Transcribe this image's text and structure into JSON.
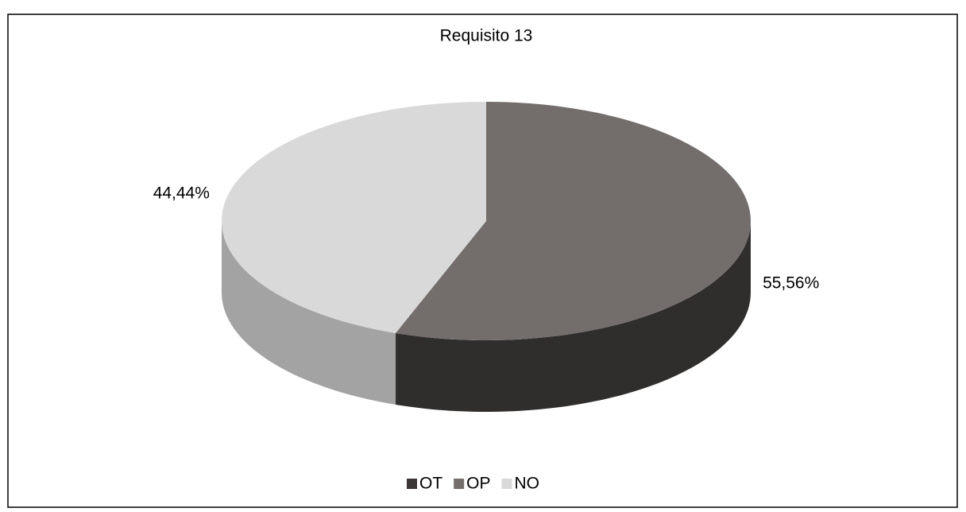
{
  "chart_data": {
    "type": "pie3d",
    "title": "Requisito 13",
    "categories": [
      "OT",
      "OP",
      "NO"
    ],
    "values": [
      0,
      55.56,
      44.44
    ],
    "value_labels": [
      null,
      "55,56%",
      "44,44%"
    ],
    "colors": [
      "#3b3737",
      "#736e6c",
      "#d9d9d9"
    ],
    "legend": "bottom"
  }
}
